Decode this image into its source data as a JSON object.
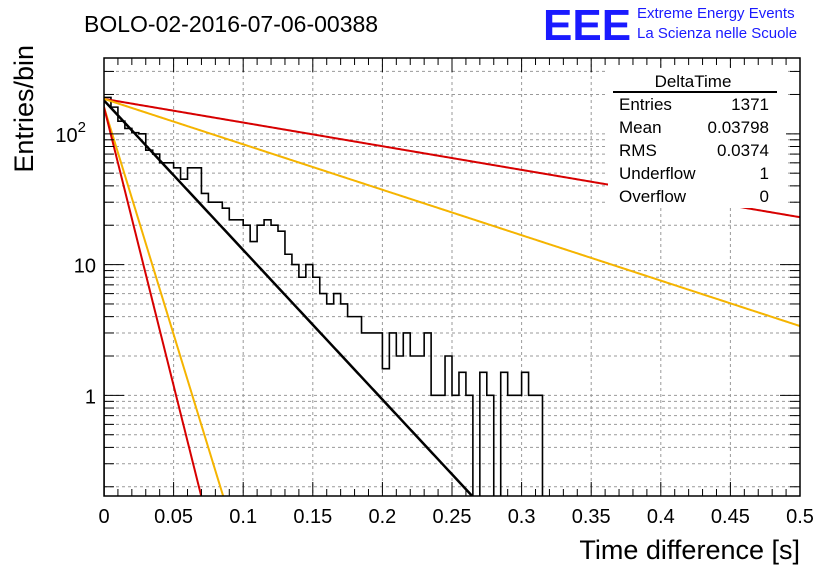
{
  "chart_data": {
    "type": "line",
    "title": "BOLO-02-2016-07-06-00388",
    "xlabel": "Time difference [s]",
    "ylabel": "Entries/bin",
    "xlim": [
      0,
      0.5
    ],
    "ylim": [
      0.17,
      380
    ],
    "log_y": true,
    "grid": true,
    "x_ticks": [
      "0",
      "0.05",
      "0.1",
      "0.15",
      "0.2",
      "0.25",
      "0.3",
      "0.35",
      "0.4",
      "0.45",
      "0.5"
    ],
    "y_ticks": [
      {
        "value": 1,
        "base": "1",
        "exp": ""
      },
      {
        "value": 10,
        "base": "10",
        "exp": ""
      },
      {
        "value": 100,
        "base": "10",
        "exp": "2"
      }
    ],
    "histogram": {
      "name": "DeltaTime",
      "bin_width": 0.005,
      "counts": [
        190,
        160,
        125,
        110,
        102,
        100,
        75,
        70,
        60,
        60,
        55,
        45,
        55,
        55,
        35,
        30,
        30,
        27,
        22,
        22,
        20,
        15,
        20,
        22,
        20,
        18,
        12,
        10,
        8,
        10,
        8,
        6,
        5,
        6,
        5,
        4,
        4,
        3,
        3,
        3,
        1.6,
        3,
        2,
        3,
        2,
        2,
        3,
        1,
        1,
        2,
        1,
        1.5,
        1,
        0,
        1.5,
        1,
        0,
        1.5,
        1,
        1,
        1.5,
        1,
        1,
        0,
        0,
        0,
        0,
        0,
        0,
        0,
        0,
        0,
        0,
        0,
        0,
        0,
        0,
        0,
        0,
        0,
        0,
        0,
        0,
        0,
        0,
        0,
        0,
        0,
        0,
        0,
        0,
        0,
        0,
        0,
        0,
        0,
        0,
        0,
        0,
        0
      ]
    },
    "fits": [
      {
        "color": "#000000",
        "A": 180,
        "tau": 0.03798,
        "width": 2.5
      },
      {
        "color": "#d70000",
        "A": 185,
        "tau": 0.24
      },
      {
        "color": "#f5b400",
        "A": 185,
        "tau": 0.125
      },
      {
        "color": "#f5b400",
        "A": 160,
        "tau": 0.0125
      },
      {
        "color": "#d70000",
        "A": 160,
        "tau": 0.0102
      }
    ],
    "stats": {
      "name": "DeltaTime",
      "rows": [
        {
          "label": "Entries",
          "value": "1371"
        },
        {
          "label": "Mean",
          "value": "0.03798"
        },
        {
          "label": "RMS",
          "value": "0.0374"
        },
        {
          "label": "Underflow",
          "value": "1"
        },
        {
          "label": "Overflow",
          "value": "0"
        }
      ]
    }
  },
  "logo": {
    "big": "EEE",
    "line1": "Extreme Energy Events",
    "line2": "La Scienza nelle Scuole",
    "color": "#1a1aff"
  }
}
